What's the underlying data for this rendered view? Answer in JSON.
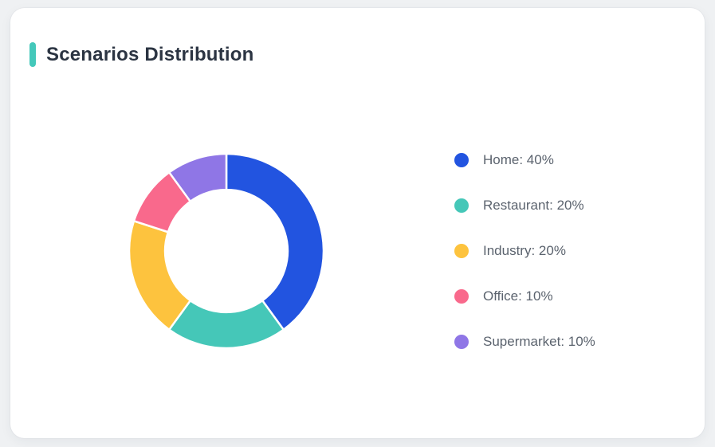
{
  "card": {
    "title": "Scenarios Distribution",
    "accent_color": "#44c8ba"
  },
  "chart_data": {
    "type": "pie",
    "subtype": "donut",
    "title": "Scenarios Distribution",
    "categories": [
      "Home",
      "Restaurant",
      "Industry",
      "Office",
      "Supermarket"
    ],
    "values": [
      40,
      20,
      20,
      10,
      10
    ],
    "unit": "%",
    "colors": [
      "#2254e0",
      "#45c7b8",
      "#fdc33e",
      "#f9698c",
      "#8f76e6"
    ],
    "legend_entries": [
      "Home: 40%",
      "Restaurant: 20%",
      "Industry: 20%",
      "Office: 10%",
      "Supermarket: 10%"
    ],
    "legend_position": "right",
    "start_angle_deg": 0,
    "sweep": "clockwise",
    "outer_radius_px": 122,
    "inner_radius_ratio": 0.63,
    "segment_gap_color": "#ffffff"
  }
}
